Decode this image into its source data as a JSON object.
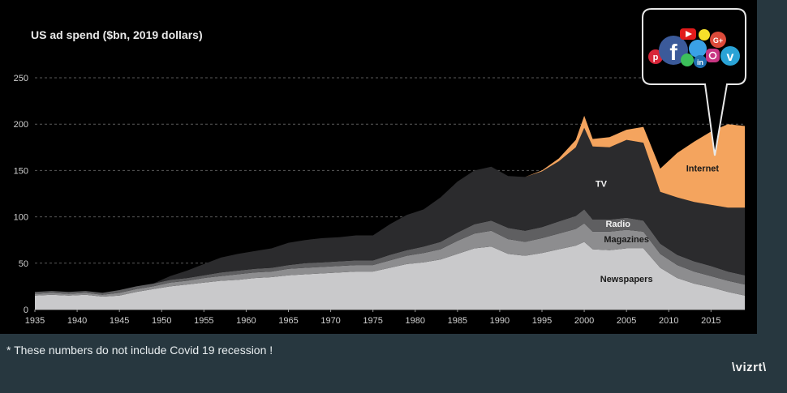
{
  "slide": {
    "footnote": "* These numbers do not include Covid 19 recession !",
    "logo": "\\vizrt\\",
    "bubble_icons": [
      "pinterest-icon",
      "facebook-icon",
      "youtube-icon",
      "snapchat-icon",
      "google-plus-icon",
      "twitter-icon",
      "whatsapp-icon",
      "linkedin-icon",
      "instagram-icon",
      "vimeo-icon"
    ]
  },
  "chart_data": {
    "type": "area",
    "stacked": true,
    "title": "US ad spend ($bn, 2019 dollars)",
    "xlabel": "",
    "ylabel": "",
    "xlim": [
      1935,
      2019
    ],
    "ylim": [
      0,
      250
    ],
    "yticks": [
      0,
      50,
      100,
      150,
      200,
      250
    ],
    "xticks": [
      1935,
      1940,
      1945,
      1950,
      1955,
      1960,
      1965,
      1970,
      1975,
      1980,
      1985,
      1990,
      1995,
      2000,
      2005,
      2010,
      2015
    ],
    "grid": "horizontal dashed",
    "legend": "inline labels",
    "colors": {
      "Newspapers": "#c9c9cb",
      "Magazines": "#8d8d8f",
      "Radio": "#5f5f61",
      "TV": "#2b2b2d",
      "Internet": "#f4a45e"
    },
    "x": [
      1935,
      1937,
      1939,
      1941,
      1943,
      1945,
      1947,
      1949,
      1951,
      1953,
      1955,
      1957,
      1959,
      1961,
      1963,
      1965,
      1967,
      1969,
      1971,
      1973,
      1975,
      1977,
      1979,
      1981,
      1983,
      1985,
      1987,
      1989,
      1991,
      1993,
      1995,
      1997,
      1999,
      2000,
      2001,
      2003,
      2005,
      2007,
      2009,
      2011,
      2013,
      2015,
      2017,
      2019
    ],
    "series": [
      {
        "name": "Newspapers",
        "values": [
          15,
          16,
          15,
          16,
          14,
          15,
          19,
          22,
          25,
          27,
          29,
          31,
          32,
          34,
          35,
          37,
          38,
          39,
          40,
          41,
          41,
          45,
          49,
          51,
          54,
          60,
          66,
          68,
          60,
          58,
          61,
          65,
          69,
          73,
          65,
          64,
          66,
          66,
          45,
          34,
          28,
          24,
          19,
          15
        ]
      },
      {
        "name": "Magazines",
        "values": [
          2,
          2,
          2,
          2,
          2,
          3,
          3,
          3,
          4,
          4,
          5,
          5,
          6,
          6,
          6,
          7,
          7,
          7,
          7,
          7,
          7,
          8,
          9,
          10,
          11,
          14,
          16,
          17,
          16,
          15,
          16,
          17,
          18,
          20,
          19,
          20,
          20,
          18,
          15,
          14,
          13,
          12,
          12,
          12
        ]
      },
      {
        "name": "Radio",
        "values": [
          2,
          2,
          2,
          2,
          2,
          3,
          3,
          3,
          3,
          3,
          3,
          4,
          4,
          4,
          4,
          4,
          5,
          5,
          5,
          5,
          5,
          6,
          6,
          7,
          8,
          9,
          10,
          11,
          12,
          12,
          12,
          13,
          14,
          15,
          13,
          13,
          13,
          12,
          11,
          11,
          11,
          11,
          10,
          10
        ]
      },
      {
        "name": "TV",
        "values": [
          0,
          0,
          0,
          0,
          0,
          0,
          0,
          0,
          4,
          8,
          12,
          16,
          18,
          19,
          21,
          24,
          25,
          26,
          26,
          27,
          27,
          33,
          38,
          40,
          48,
          55,
          58,
          58,
          56,
          58,
          60,
          65,
          74,
          88,
          79,
          78,
          84,
          84,
          56,
          62,
          64,
          66,
          69,
          73
        ]
      },
      {
        "name": "Internet",
        "values": [
          0,
          0,
          0,
          0,
          0,
          0,
          0,
          0,
          0,
          0,
          0,
          0,
          0,
          0,
          0,
          0,
          0,
          0,
          0,
          0,
          0,
          0,
          0,
          0,
          0,
          0,
          0,
          0,
          0,
          0,
          1,
          3,
          8,
          13,
          8,
          11,
          11,
          17,
          25,
          48,
          65,
          79,
          90,
          88
        ]
      }
    ]
  }
}
